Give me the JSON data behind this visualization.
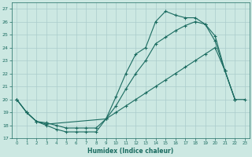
{
  "xlabel": "Humidex (Indice chaleur)",
  "bg_color": "#cce8e2",
  "grid_color": "#aacccc",
  "line_color": "#1a6b60",
  "xlim": [
    -0.5,
    23.5
  ],
  "ylim": [
    17,
    27.5
  ],
  "xticks": [
    0,
    1,
    2,
    3,
    4,
    5,
    6,
    7,
    8,
    9,
    10,
    11,
    12,
    13,
    14,
    15,
    16,
    17,
    18,
    19,
    20,
    21,
    22,
    23
  ],
  "yticks": [
    17,
    18,
    19,
    20,
    21,
    22,
    23,
    24,
    25,
    26,
    27
  ],
  "curve1_x": [
    0,
    1,
    2,
    3,
    4,
    5,
    6,
    7,
    8,
    9,
    10,
    11,
    12,
    13,
    14,
    15,
    16,
    17,
    18,
    19,
    20,
    21,
    22
  ],
  "curve1_y": [
    20.0,
    19.0,
    18.3,
    18.0,
    17.7,
    17.5,
    17.5,
    17.5,
    17.5,
    18.5,
    20.2,
    22.0,
    23.5,
    24.0,
    26.0,
    26.8,
    26.5,
    26.3,
    26.3,
    25.8,
    24.9,
    22.2,
    20.0
  ],
  "curve2_x": [
    0,
    1,
    2,
    3,
    4,
    5,
    6,
    7,
    8,
    9,
    10,
    11,
    12,
    13,
    14,
    15,
    16,
    17,
    18,
    19,
    20,
    21,
    22
  ],
  "curve2_y": [
    20.0,
    19.0,
    18.3,
    18.2,
    18.0,
    17.8,
    17.8,
    17.8,
    17.8,
    18.5,
    19.5,
    20.8,
    22.0,
    23.0,
    24.3,
    24.8,
    25.3,
    25.7,
    26.0,
    25.8,
    24.5,
    22.2,
    20.0
  ],
  "curve3_x": [
    0,
    1,
    2,
    3,
    9,
    10,
    11,
    12,
    13,
    14,
    15,
    16,
    17,
    18,
    19,
    20,
    21,
    22,
    23
  ],
  "curve3_y": [
    20.0,
    19.0,
    18.3,
    18.1,
    18.5,
    19.0,
    19.5,
    20.0,
    20.5,
    21.0,
    21.5,
    22.0,
    22.5,
    23.0,
    23.5,
    24.0,
    22.2,
    20.0,
    20.0
  ]
}
